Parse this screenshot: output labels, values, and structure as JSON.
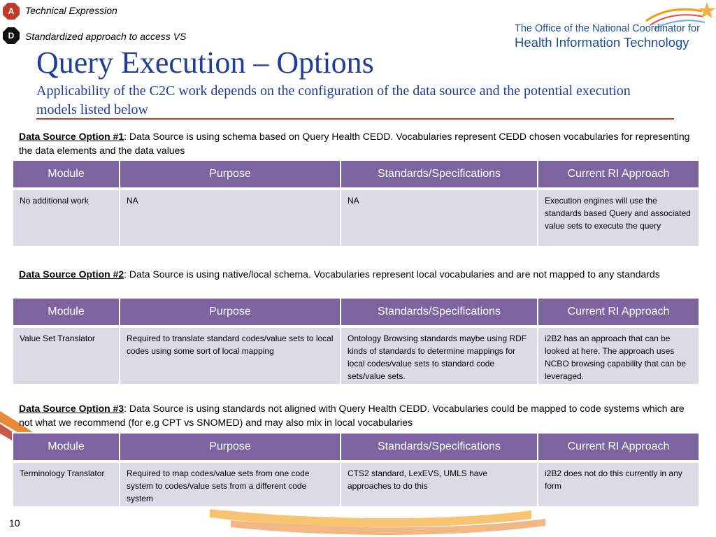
{
  "badges": [
    {
      "letter": "A",
      "text": "Technical Expression"
    },
    {
      "letter": "D",
      "text": "Standardized approach to access VS"
    }
  ],
  "logo": {
    "line1": "The Office of the National Coordinator for",
    "line2": "Health Information Technology"
  },
  "title": "Query Execution – Options",
  "subtitle": "Applicability of the C2C work depends on the configuration of the data source and the potential execution models listed below",
  "options": [
    {
      "label": "Data Source Option #1",
      "text": ": Data Source is using schema based on Query Health CEDD.  Vocabularies represent CEDD chosen vocabularies for representing the data elements and the data values",
      "headers": [
        "Module",
        "Purpose",
        "Standards/Specifications",
        "Current RI Approach"
      ],
      "row": [
        "No additional work",
        "NA",
        "NA",
        "Execution engines will use the standards based Query and associated value sets to execute the query"
      ]
    },
    {
      "label": "Data Source Option #2",
      "text": ": Data Source is using native/local schema.  Vocabularies represent local vocabularies and are not mapped to any standards",
      "headers": [
        "Module",
        "Purpose",
        "Standards/Specifications",
        "Current RI Approach"
      ],
      "row": [
        "Value Set Translator",
        "Required to translate standard codes/value sets to local codes using some sort of local mapping",
        "Ontology Browsing standards maybe using RDF kinds of standards to determine mappings for local codes/value sets to standard code sets/value sets.",
        "i2B2 has an approach that can be looked at here. The approach uses NCBO browsing capability that can be leveraged."
      ]
    },
    {
      "label": "Data Source Option #3",
      "text": ": Data Source is using standards not aligned with Query Health CEDD.  Vocabularies could be mapped to code systems which are not what we recommend (for e.g CPT vs SNOMED) and may also mix in local vocabularies",
      "headers": [
        "Module",
        "Purpose",
        "Standards/Specifications",
        "Current RI Approach"
      ],
      "row": [
        "Terminology Translator",
        "Required to map codes/value sets from one code system to codes/value sets from a different code system",
        "CTS2 standard, LexEVS, UMLS have approaches to do this",
        "i2B2 does not do this currently in any form"
      ]
    }
  ],
  "page_number": "10",
  "colors": {
    "title_blue": "#1f3d99",
    "header_purple": "#7b64a0",
    "cell_lavender": "#dcdae5",
    "rule_red": "#c0392b",
    "badge_red": "#c0392b",
    "badge_dark": "#111111"
  }
}
